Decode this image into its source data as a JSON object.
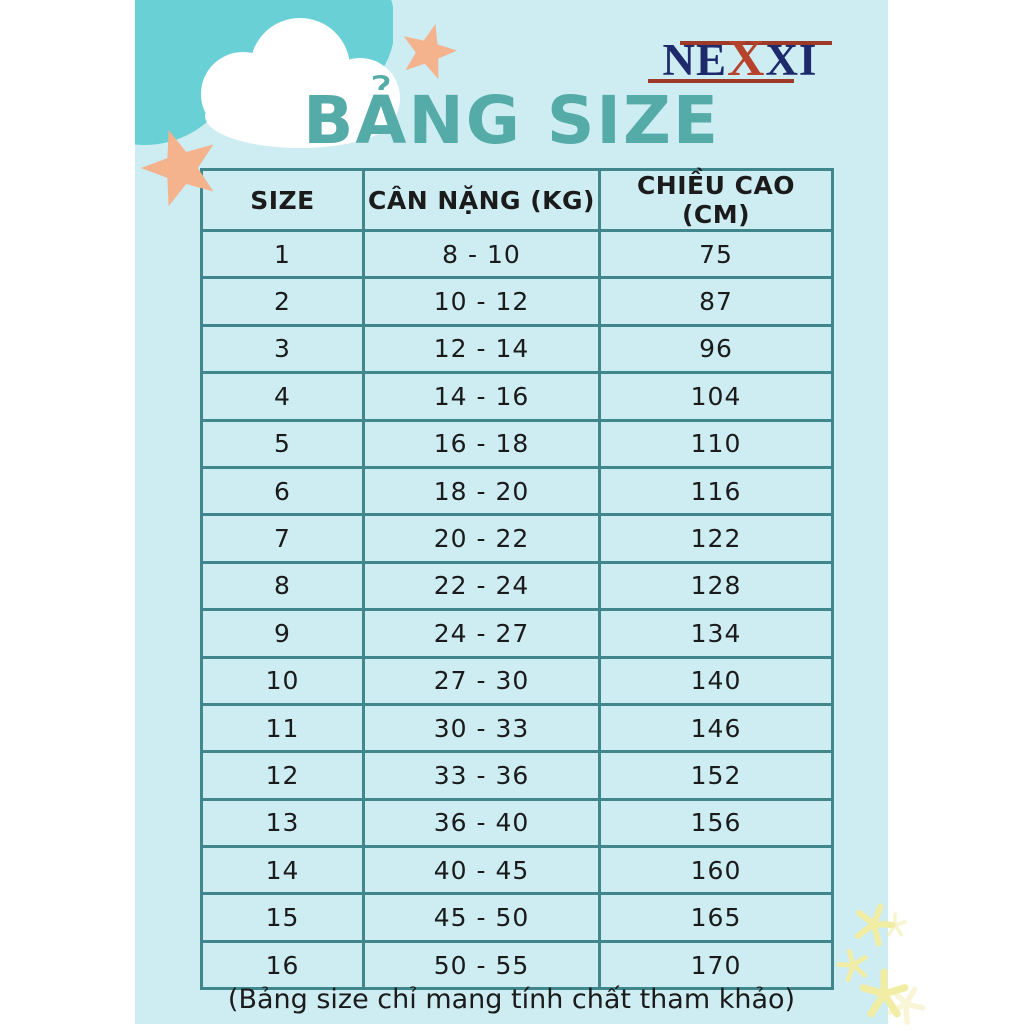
{
  "brand": {
    "part1": "NE",
    "part2": "X",
    "part3": "XI",
    "full_name": "NEXXI"
  },
  "title": "BẢNG SIZE",
  "table": {
    "headers": [
      "SIZE",
      "CÂN NẶNG (KG)",
      "CHIỀU CAO (CM)"
    ],
    "rows": [
      {
        "size": "1",
        "weight": "8 - 10",
        "height": "75"
      },
      {
        "size": "2",
        "weight": "10 - 12",
        "height": "87"
      },
      {
        "size": "3",
        "weight": "12 - 14",
        "height": "96"
      },
      {
        "size": "4",
        "weight": "14 - 16",
        "height": "104"
      },
      {
        "size": "5",
        "weight": "16 - 18",
        "height": "110"
      },
      {
        "size": "6",
        "weight": "18 - 20",
        "height": "116"
      },
      {
        "size": "7",
        "weight": "20 - 22",
        "height": "122"
      },
      {
        "size": "8",
        "weight": "22 - 24",
        "height": "128"
      },
      {
        "size": "9",
        "weight": "24 - 27",
        "height": "134"
      },
      {
        "size": "10",
        "weight": "27 - 30",
        "height": "140"
      },
      {
        "size": "11",
        "weight": "30 - 33",
        "height": "146"
      },
      {
        "size": "12",
        "weight": "33 - 36",
        "height": "152"
      },
      {
        "size": "13",
        "weight": "36 - 40",
        "height": "156"
      },
      {
        "size": "14",
        "weight": "40 - 45",
        "height": "160"
      },
      {
        "size": "15",
        "weight": "45 - 50",
        "height": "165"
      },
      {
        "size": "16",
        "weight": "50 - 55",
        "height": "170"
      }
    ]
  },
  "caption": "(Bảng size chỉ mang tính chất tham khảo)",
  "colors": {
    "background": "#cdedf2",
    "table_border": "#3f878c",
    "title_teal": "#55aba7",
    "cloud_teal": "#69d1d5",
    "star_orange": "#f4b28d",
    "logo_navy": "#1e2a6b",
    "logo_red": "#b8432c",
    "logo_line": "#a03a28",
    "sparkle_yellow": "#f1eda5",
    "text": "#1b1b1b"
  },
  "decorations": {
    "icons": [
      "cloud-teal-icon",
      "cloud-white-icon",
      "star-icon-small",
      "star-icon-large",
      "sparkle-icons"
    ]
  }
}
